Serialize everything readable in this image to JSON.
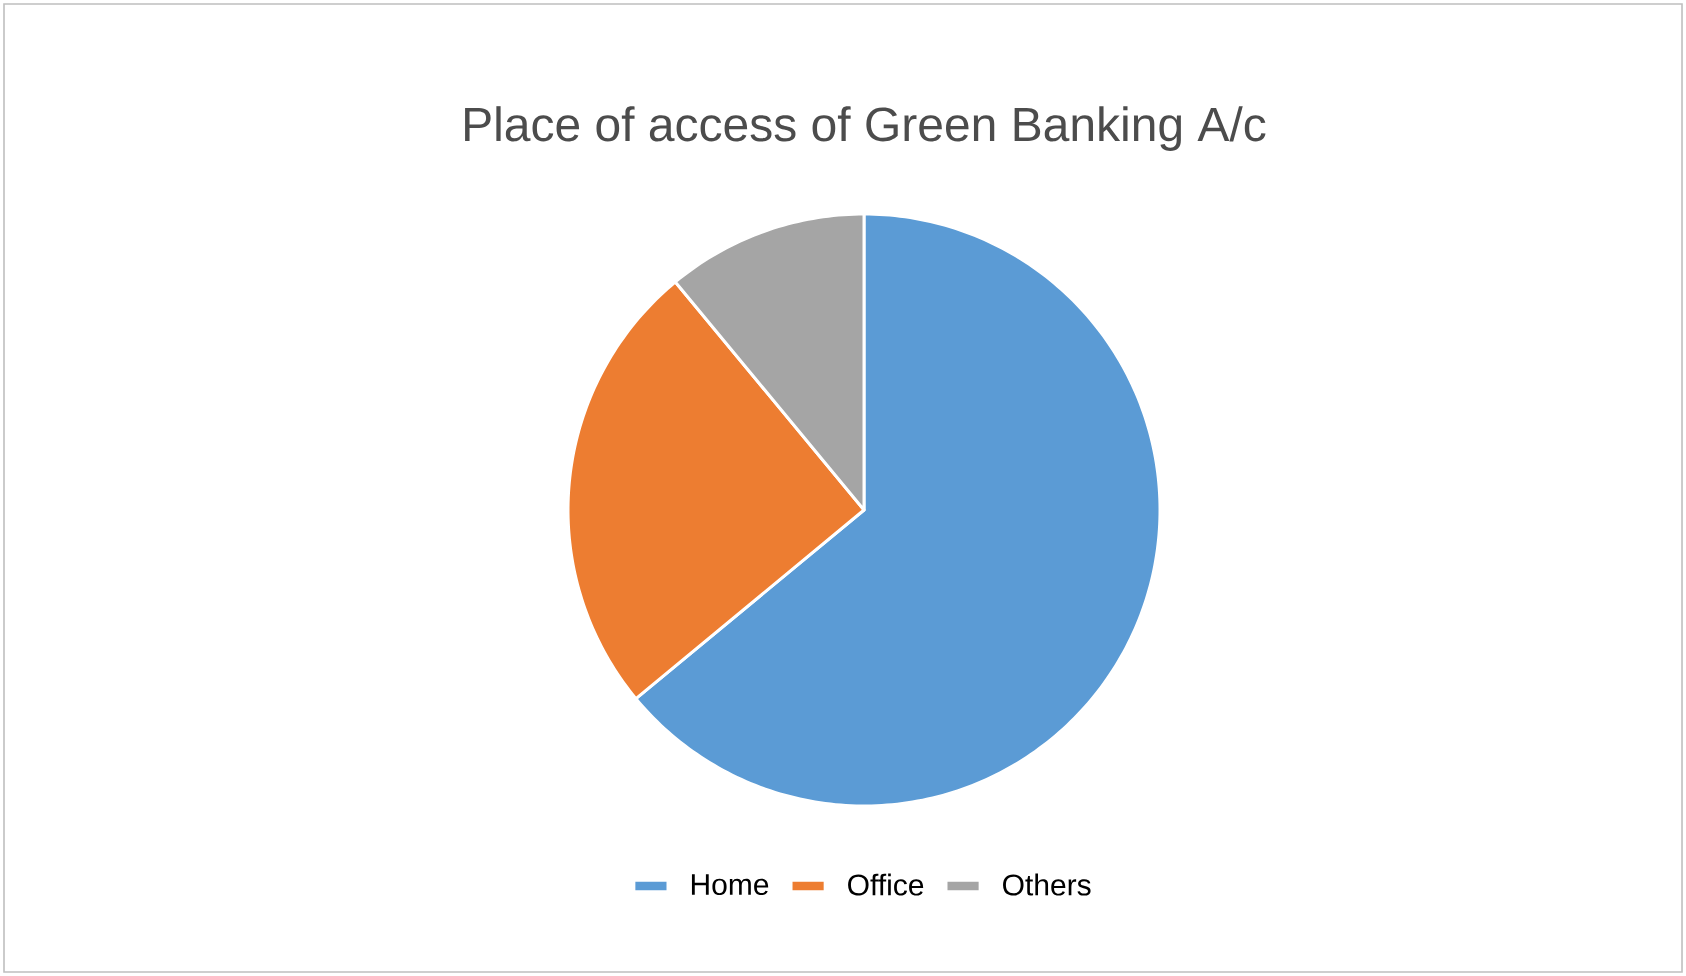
{
  "chart_data": {
    "type": "pie",
    "title": "Place of access of Green Banking A/c",
    "categories": [
      "Home",
      "Office",
      "Others"
    ],
    "values": [
      64,
      25,
      11
    ],
    "colors": [
      "#5b9bd5",
      "#ed7d31",
      "#a5a5a5"
    ],
    "legend": "bottom"
  }
}
